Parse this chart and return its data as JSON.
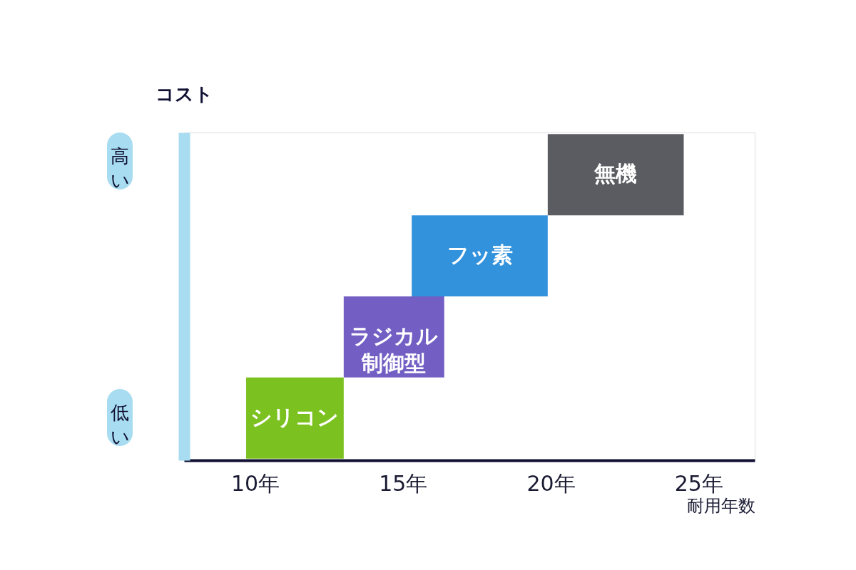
{
  "chart_data": {
    "type": "bar",
    "orientation": "horizontal",
    "xlabel": "耐用年数",
    "ylabel": "コスト",
    "categories": [
      "無機",
      "フッ素",
      "ラジカル制御型",
      "シリコン"
    ],
    "base": [
      19.9,
      15.3,
      13.0,
      9.7
    ],
    "values": [
      4.6,
      4.6,
      3.4,
      3.3
    ],
    "colors": [
      "#5b5c62",
      "#3392dc",
      "#735fc4",
      "#7bc11f"
    ],
    "xlim": [
      7.6,
      26.9
    ],
    "xticks": [
      {
        "value": 10,
        "label": "10年"
      },
      {
        "value": 15,
        "label": "15年"
      },
      {
        "value": 20,
        "label": "20年"
      },
      {
        "value": 25,
        "label": "25年"
      }
    ],
    "tick_labels": "x",
    "annotations": [
      "高い",
      "低い"
    ]
  }
}
